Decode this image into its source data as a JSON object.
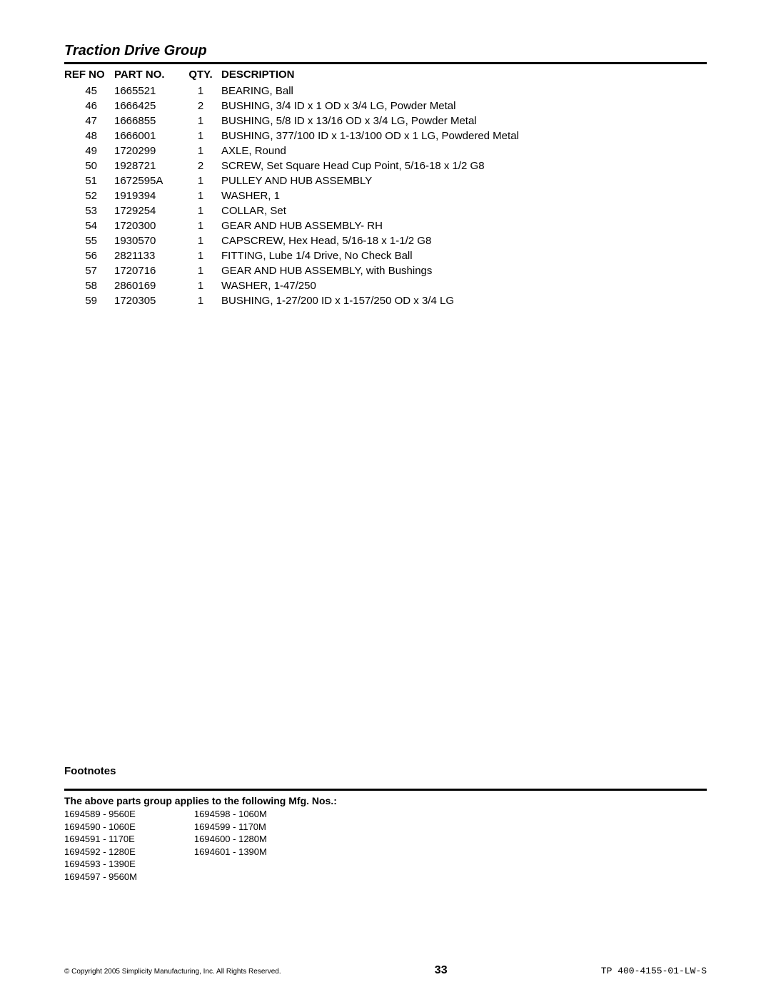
{
  "section_title": "Traction Drive Group",
  "table": {
    "headers": {
      "ref": "REF NO",
      "part": "PART NO.",
      "qty": "QTY.",
      "desc": "DESCRIPTION"
    },
    "rows": [
      {
        "ref": "45",
        "part": "1665521",
        "qty": "1",
        "desc": "BEARING, Ball"
      },
      {
        "ref": "46",
        "part": "1666425",
        "qty": "2",
        "desc": "BUSHING, 3/4 ID x 1 OD x 3/4 LG, Powder Metal"
      },
      {
        "ref": "47",
        "part": "1666855",
        "qty": "1",
        "desc": "BUSHING, 5/8 ID x 13/16 OD x 3/4 LG, Powder Metal"
      },
      {
        "ref": "48",
        "part": "1666001",
        "qty": "1",
        "desc": "BUSHING, 377/100 ID x 1-13/100 OD x 1 LG, Powdered Metal"
      },
      {
        "ref": "49",
        "part": "1720299",
        "qty": "1",
        "desc": "AXLE, Round"
      },
      {
        "ref": "50",
        "part": "1928721",
        "qty": "2",
        "desc": "SCREW, Set Square Head Cup Point, 5/16-18 x 1/2 G8"
      },
      {
        "ref": "51",
        "part": "1672595A",
        "qty": "1",
        "desc": "PULLEY AND HUB ASSEMBLY"
      },
      {
        "ref": "52",
        "part": "1919394",
        "qty": "1",
        "desc": "WASHER, 1"
      },
      {
        "ref": "53",
        "part": "1729254",
        "qty": "1",
        "desc": "COLLAR, Set"
      },
      {
        "ref": "54",
        "part": "1720300",
        "qty": "1",
        "desc": "GEAR AND HUB ASSEMBLY- RH"
      },
      {
        "ref": "55",
        "part": "1930570",
        "qty": "1",
        "desc": "CAPSCREW, Hex Head, 5/16-18 x 1-1/2 G8"
      },
      {
        "ref": "56",
        "part": "2821133",
        "qty": "1",
        "desc": "FITTING, Lube 1/4 Drive, No Check Ball"
      },
      {
        "ref": "57",
        "part": "1720716",
        "qty": "1",
        "desc": "GEAR AND HUB ASSEMBLY, with Bushings"
      },
      {
        "ref": "58",
        "part": "2860169",
        "qty": "1",
        "desc": "WASHER, 1-47/250"
      },
      {
        "ref": "59",
        "part": "1720305",
        "qty": "1",
        "desc": "BUSHING, 1-27/200 ID x 1-157/250 OD x 3/4 LG"
      }
    ]
  },
  "footnotes_title": "Footnotes",
  "mfg_title": "The above parts group applies to the following Mfg. Nos.:",
  "mfg_col1": [
    "1694589 - 9560E",
    "1694590 - 1060E",
    "1694591 - 1170E",
    "1694592 - 1280E",
    "1694593 - 1390E",
    "1694597 - 9560M"
  ],
  "mfg_col2": [
    "1694598 - 1060M",
    "1694599 - 1170M",
    "1694600 - 1280M",
    "1694601 - 1390M"
  ],
  "footer": {
    "copyright": "© Copyright 2005 Simplicity Manufacturing, Inc. All Rights Reserved.",
    "page_num": "33",
    "doc_id": "TP 400-4155-01-LW-S"
  }
}
